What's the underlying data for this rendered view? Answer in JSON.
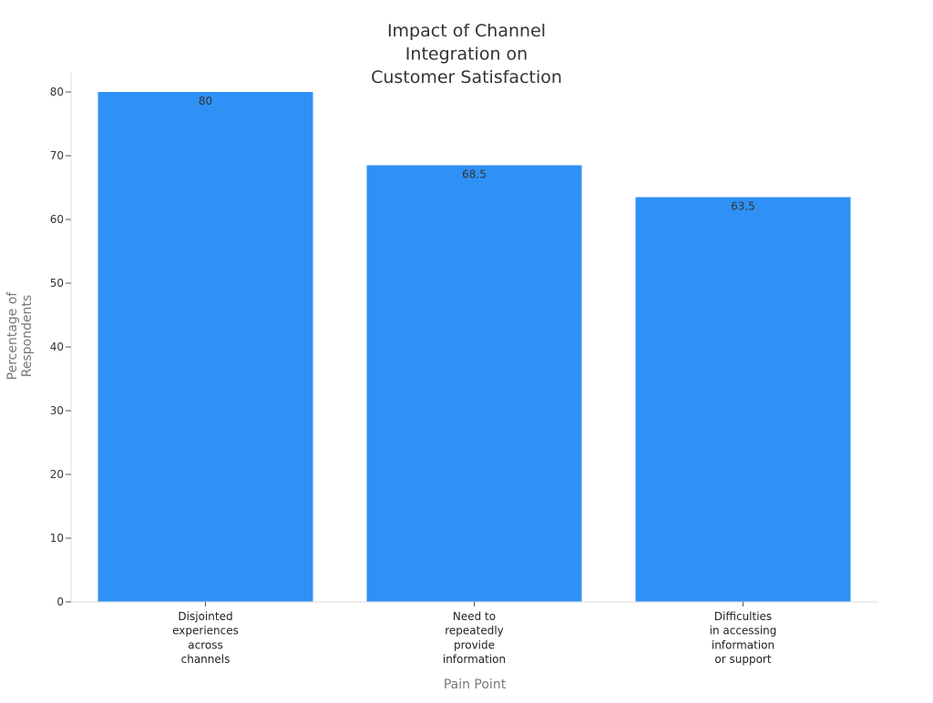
{
  "chart_data": {
    "type": "bar",
    "title": "Impact of Channel Integration on Customer Satisfaction",
    "title_lines": [
      "Impact of Channel",
      "Integration on",
      "Customer Satisfaction"
    ],
    "xlabel": "Pain Point",
    "ylabel": "Percentage of Respondents",
    "ylabel_lines": [
      "Percentage of",
      "Respondents"
    ],
    "ylim": [
      0,
      83
    ],
    "yticks": [
      0,
      10,
      20,
      30,
      40,
      50,
      60,
      70,
      80
    ],
    "grid": false,
    "legend": "none",
    "bar_color": "#2f91f5",
    "categories": [
      "Disjointed experiences across channels",
      "Need to repeatedly provide information",
      "Difficulties in accessing information or support"
    ],
    "category_lines": [
      [
        "Disjointed",
        "experiences",
        "across",
        "channels"
      ],
      [
        "Need to",
        "repeatedly",
        "provide",
        "information"
      ],
      [
        "Difficulties",
        "in accessing",
        "information",
        "or support"
      ]
    ],
    "values": [
      80,
      68.5,
      63.5
    ],
    "value_labels": [
      "80",
      "68.5",
      "63.5"
    ]
  }
}
